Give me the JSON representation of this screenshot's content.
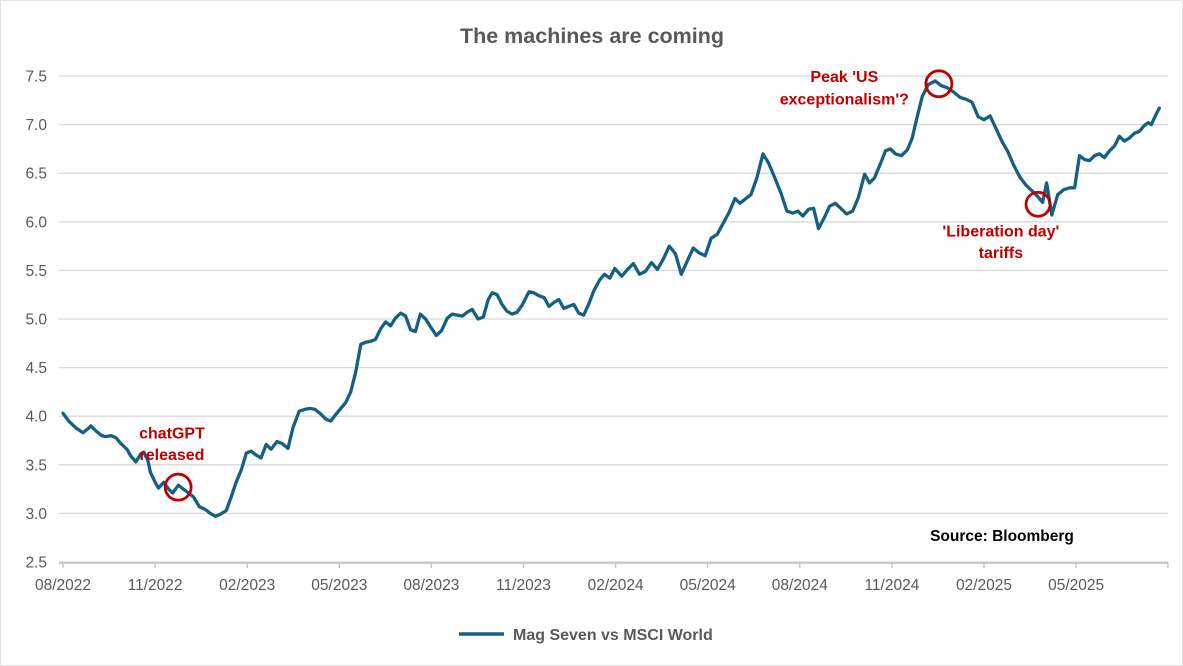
{
  "source_note": "Source: Bloomberg",
  "colors": {
    "line": "#156082",
    "annotation_red": "#c00000",
    "title_text": "#595959",
    "axis_text": "#595959",
    "gridline": "#d9d9d9",
    "axis_line": "#bfbfbf",
    "source_text": "#000000"
  },
  "chart_data": {
    "type": "line",
    "title": "The machines are coming",
    "xlabel": "",
    "ylabel": "",
    "grid": true,
    "legend_position": "bottom",
    "ylim": [
      2.5,
      7.75
    ],
    "y_ticks": [
      2.5,
      3.0,
      3.5,
      4.0,
      4.5,
      5.0,
      5.5,
      6.0,
      6.5,
      7.0,
      7.5
    ],
    "x_unit": "months since 08/2022, weekly data",
    "x_tick_months": [
      0,
      3,
      6,
      9,
      12,
      15,
      18,
      21,
      24,
      27,
      30,
      33
    ],
    "x_tick_labels": [
      "08/2022",
      "11/2022",
      "02/2023",
      "05/2023",
      "08/2023",
      "11/2023",
      "02/2024",
      "05/2024",
      "08/2024",
      "11/2024",
      "02/2025",
      "05/2025"
    ],
    "x_axis_end_month": 36,
    "series": [
      {
        "name": "Mag Seven vs MSCI World",
        "color": "#156082",
        "points": [
          [
            0,
            4.03
          ],
          [
            0.19,
            3.95
          ],
          [
            0.42,
            3.88
          ],
          [
            0.65,
            3.83
          ],
          [
            0.81,
            3.87
          ],
          [
            0.91,
            3.9
          ],
          [
            1.07,
            3.85
          ],
          [
            1.26,
            3.8
          ],
          [
            1.39,
            3.79
          ],
          [
            1.56,
            3.8
          ],
          [
            1.72,
            3.78
          ],
          [
            1.88,
            3.72
          ],
          [
            2.08,
            3.66
          ],
          [
            2.21,
            3.59
          ],
          [
            2.37,
            3.53
          ],
          [
            2.53,
            3.61
          ],
          [
            2.63,
            3.63
          ],
          [
            2.76,
            3.55
          ],
          [
            2.85,
            3.42
          ],
          [
            3.02,
            3.31
          ],
          [
            3.11,
            3.26
          ],
          [
            3.28,
            3.32
          ],
          [
            3.44,
            3.25
          ],
          [
            3.57,
            3.21
          ],
          [
            3.76,
            3.29
          ],
          [
            3.92,
            3.25
          ],
          [
            4.09,
            3.21
          ],
          [
            4.25,
            3.17
          ],
          [
            4.44,
            3.07
          ],
          [
            4.64,
            3.04
          ],
          [
            4.8,
            3.0
          ],
          [
            4.96,
            2.97
          ],
          [
            5.12,
            2.99
          ],
          [
            5.32,
            3.03
          ],
          [
            5.48,
            3.17
          ],
          [
            5.64,
            3.32
          ],
          [
            5.81,
            3.45
          ],
          [
            5.97,
            3.62
          ],
          [
            6.13,
            3.64
          ],
          [
            6.29,
            3.6
          ],
          [
            6.45,
            3.57
          ],
          [
            6.62,
            3.71
          ],
          [
            6.78,
            3.66
          ],
          [
            6.97,
            3.74
          ],
          [
            7.13,
            3.72
          ],
          [
            7.33,
            3.67
          ],
          [
            7.49,
            3.88
          ],
          [
            7.69,
            4.05
          ],
          [
            7.88,
            4.07
          ],
          [
            8.04,
            4.08
          ],
          [
            8.21,
            4.07
          ],
          [
            8.37,
            4.03
          ],
          [
            8.56,
            3.97
          ],
          [
            8.72,
            3.95
          ],
          [
            8.89,
            4.02
          ],
          [
            9.05,
            4.08
          ],
          [
            9.21,
            4.14
          ],
          [
            9.37,
            4.25
          ],
          [
            9.53,
            4.45
          ],
          [
            9.7,
            4.74
          ],
          [
            9.86,
            4.76
          ],
          [
            10.02,
            4.77
          ],
          [
            10.18,
            4.79
          ],
          [
            10.35,
            4.9
          ],
          [
            10.51,
            4.97
          ],
          [
            10.67,
            4.93
          ],
          [
            10.83,
            5.01
          ],
          [
            11.0,
            5.06
          ],
          [
            11.16,
            5.03
          ],
          [
            11.32,
            4.89
          ],
          [
            11.48,
            4.87
          ],
          [
            11.64,
            5.05
          ],
          [
            11.81,
            5.0
          ],
          [
            11.97,
            4.92
          ],
          [
            12.16,
            4.83
          ],
          [
            12.33,
            4.88
          ],
          [
            12.52,
            5.01
          ],
          [
            12.68,
            5.05
          ],
          [
            12.84,
            5.04
          ],
          [
            13.01,
            5.03
          ],
          [
            13.17,
            5.07
          ],
          [
            13.33,
            5.1
          ],
          [
            13.52,
            5.0
          ],
          [
            13.69,
            5.02
          ],
          [
            13.85,
            5.2
          ],
          [
            13.98,
            5.27
          ],
          [
            14.14,
            5.25
          ],
          [
            14.3,
            5.15
          ],
          [
            14.46,
            5.08
          ],
          [
            14.63,
            5.05
          ],
          [
            14.79,
            5.07
          ],
          [
            14.95,
            5.14
          ],
          [
            15.18,
            5.28
          ],
          [
            15.34,
            5.27
          ],
          [
            15.5,
            5.24
          ],
          [
            15.67,
            5.22
          ],
          [
            15.83,
            5.13
          ],
          [
            15.99,
            5.17
          ],
          [
            16.15,
            5.2
          ],
          [
            16.31,
            5.11
          ],
          [
            16.48,
            5.13
          ],
          [
            16.64,
            5.15
          ],
          [
            16.8,
            5.06
          ],
          [
            16.96,
            5.04
          ],
          [
            17.12,
            5.15
          ],
          [
            17.29,
            5.29
          ],
          [
            17.48,
            5.4
          ],
          [
            17.64,
            5.46
          ],
          [
            17.81,
            5.42
          ],
          [
            17.97,
            5.52
          ],
          [
            18.2,
            5.44
          ],
          [
            18.39,
            5.51
          ],
          [
            18.58,
            5.57
          ],
          [
            18.78,
            5.46
          ],
          [
            18.97,
            5.49
          ],
          [
            19.17,
            5.58
          ],
          [
            19.36,
            5.51
          ],
          [
            19.56,
            5.62
          ],
          [
            19.75,
            5.75
          ],
          [
            19.95,
            5.67
          ],
          [
            20.14,
            5.46
          ],
          [
            20.34,
            5.6
          ],
          [
            20.53,
            5.73
          ],
          [
            20.72,
            5.68
          ],
          [
            20.92,
            5.65
          ],
          [
            21.11,
            5.83
          ],
          [
            21.31,
            5.87
          ],
          [
            21.5,
            5.98
          ],
          [
            21.7,
            6.1
          ],
          [
            21.89,
            6.24
          ],
          [
            22.05,
            6.19
          ],
          [
            22.21,
            6.23
          ],
          [
            22.41,
            6.28
          ],
          [
            22.6,
            6.45
          ],
          [
            22.8,
            6.7
          ],
          [
            22.99,
            6.6
          ],
          [
            23.19,
            6.45
          ],
          [
            23.38,
            6.3
          ],
          [
            23.58,
            6.11
          ],
          [
            23.77,
            6.09
          ],
          [
            23.93,
            6.11
          ],
          [
            24.1,
            6.06
          ],
          [
            24.29,
            6.13
          ],
          [
            24.45,
            6.14
          ],
          [
            24.61,
            5.93
          ],
          [
            24.81,
            6.05
          ],
          [
            24.97,
            6.16
          ],
          [
            25.16,
            6.19
          ],
          [
            25.33,
            6.14
          ],
          [
            25.52,
            6.08
          ],
          [
            25.72,
            6.11
          ],
          [
            25.91,
            6.25
          ],
          [
            26.11,
            6.49
          ],
          [
            26.27,
            6.4
          ],
          [
            26.43,
            6.45
          ],
          [
            26.63,
            6.6
          ],
          [
            26.79,
            6.73
          ],
          [
            26.95,
            6.75
          ],
          [
            27.11,
            6.7
          ],
          [
            27.31,
            6.68
          ],
          [
            27.5,
            6.74
          ],
          [
            27.66,
            6.86
          ],
          [
            27.83,
            7.09
          ],
          [
            27.99,
            7.29
          ],
          [
            28.18,
            7.41
          ],
          [
            28.41,
            7.45
          ],
          [
            28.61,
            7.4
          ],
          [
            28.8,
            7.38
          ],
          [
            29.03,
            7.33
          ],
          [
            29.22,
            7.28
          ],
          [
            29.42,
            7.26
          ],
          [
            29.61,
            7.23
          ],
          [
            29.81,
            7.08
          ],
          [
            30.0,
            7.05
          ],
          [
            30.2,
            7.09
          ],
          [
            30.39,
            6.96
          ],
          [
            30.58,
            6.83
          ],
          [
            30.78,
            6.72
          ],
          [
            30.97,
            6.58
          ],
          [
            31.17,
            6.46
          ],
          [
            31.36,
            6.38
          ],
          [
            31.56,
            6.32
          ],
          [
            31.75,
            6.26
          ],
          [
            31.91,
            6.2
          ],
          [
            32.04,
            6.4
          ],
          [
            32.21,
            6.07
          ],
          [
            32.4,
            6.28
          ],
          [
            32.6,
            6.33
          ],
          [
            32.79,
            6.35
          ],
          [
            32.95,
            6.35
          ],
          [
            33.11,
            6.68
          ],
          [
            33.28,
            6.64
          ],
          [
            33.44,
            6.63
          ],
          [
            33.6,
            6.68
          ],
          [
            33.76,
            6.7
          ],
          [
            33.92,
            6.66
          ],
          [
            34.09,
            6.73
          ],
          [
            34.25,
            6.78
          ],
          [
            34.41,
            6.88
          ],
          [
            34.57,
            6.83
          ],
          [
            34.73,
            6.86
          ],
          [
            34.9,
            6.91
          ],
          [
            35.06,
            6.93
          ],
          [
            35.22,
            6.99
          ],
          [
            35.35,
            7.02
          ],
          [
            35.45,
            7.0
          ],
          [
            35.58,
            7.09
          ],
          [
            35.71,
            7.17
          ]
        ]
      }
    ],
    "annotations": [
      {
        "name": "chatgpt-released",
        "lines": [
          "chatGPT",
          "released"
        ],
        "text_month": 3.55,
        "text_values": [
          3.82,
          3.6
        ],
        "circle": {
          "month": 3.75,
          "value": 3.27,
          "r": 13
        }
      },
      {
        "name": "peak-us-exceptionalism",
        "lines": [
          "Peak 'US",
          "exceptionalism'?"
        ],
        "text_month": 25.45,
        "text_values": [
          7.49,
          7.26
        ],
        "circle": {
          "month": 28.53,
          "value": 7.42,
          "r": 13
        }
      },
      {
        "name": "liberation-day-tariffs",
        "lines": [
          "'Liberation day'",
          "tariffs"
        ],
        "text_month": 30.55,
        "text_values": [
          5.9,
          5.68
        ],
        "circle": {
          "month": 31.76,
          "value": 6.18,
          "r": 12
        }
      }
    ]
  }
}
